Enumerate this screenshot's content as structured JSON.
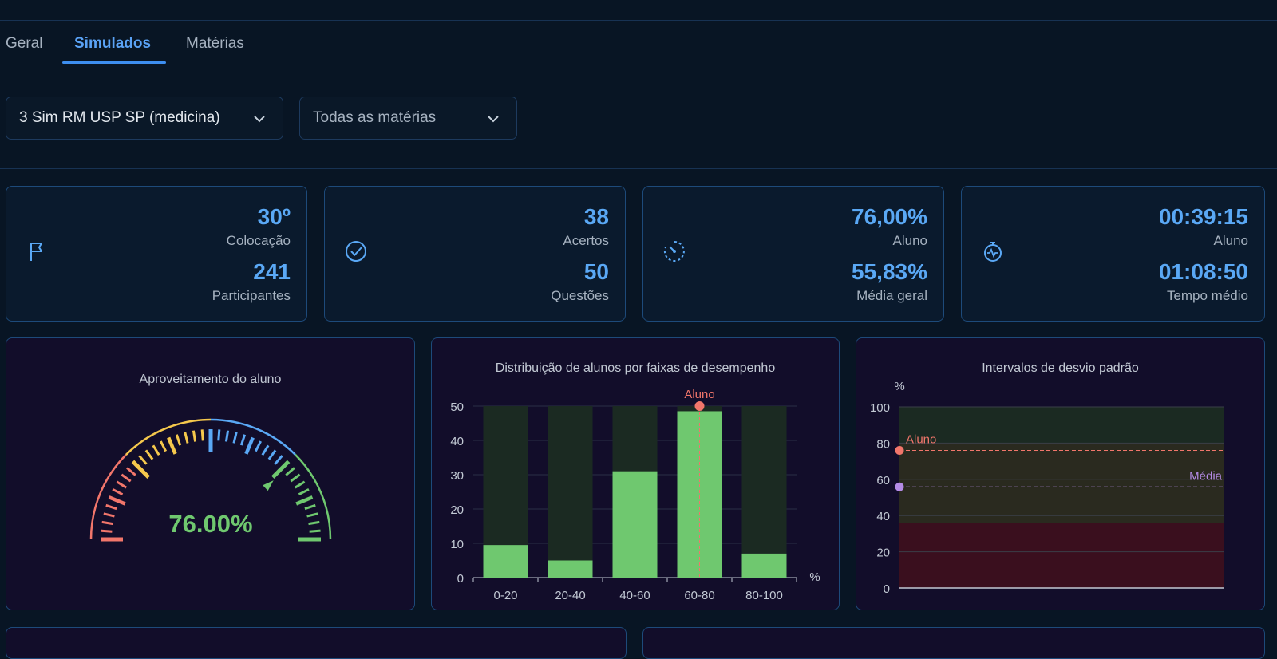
{
  "tabs": [
    {
      "label": "Geral",
      "active": false
    },
    {
      "label": "Simulados",
      "active": true
    },
    {
      "label": "Matérias",
      "active": false
    }
  ],
  "filters": {
    "exam": "3 Sim RM USP SP (medicina)",
    "subject": "Todas as matérias"
  },
  "stats": [
    {
      "icon": "flag-icon",
      "value1": "30º",
      "label1": "Colocação",
      "value2": "241",
      "label2": "Participantes"
    },
    {
      "icon": "check-circle-icon",
      "value1": "38",
      "label1": "Acertos",
      "value2": "50",
      "label2": "Questões"
    },
    {
      "icon": "gauge-timer-icon",
      "value1": "76,00%",
      "label1": "Aluno",
      "value2": "55,83%",
      "label2": "Média geral"
    },
    {
      "icon": "stopwatch-icon",
      "value1": "00:39:15",
      "label1": "Aluno",
      "value2": "01:08:50",
      "label2": "Tempo médio"
    }
  ],
  "colors": {
    "accent": "#5aa8f5",
    "good": "#6fc86f",
    "marker_student": "#f2766b",
    "marker_mean": "#b48be6",
    "gauge_red": "#f2766b",
    "gauge_yellow": "#f5c84c",
    "gauge_blue": "#5aa8f5",
    "gauge_green": "#6fc86f"
  },
  "gauge": {
    "title": "Aproveitamento do aluno",
    "value_text": "76.00%",
    "value": 76
  },
  "chart_data": [
    {
      "type": "bar",
      "title": "Distribuição de alunos por faixas de desempenho",
      "categories": [
        "0-20",
        "20-40",
        "40-60",
        "60-80",
        "80-100"
      ],
      "values": [
        9.5,
        5,
        31,
        48.5,
        7
      ],
      "background_max": 50,
      "ylim": [
        0,
        50
      ],
      "yticks": [
        0,
        10,
        20,
        30,
        40,
        50
      ],
      "xunit": "%",
      "marker": {
        "label": "Aluno",
        "category": "60-80",
        "value": 50
      }
    },
    {
      "type": "area",
      "title": "Intervalos de desvio padrão",
      "ylabel": "%",
      "ylim": [
        0,
        100
      ],
      "yticks": [
        0,
        20,
        40,
        60,
        80,
        100
      ],
      "bands": [
        {
          "from": 0,
          "to": 36,
          "color": "#3a0f1e"
        },
        {
          "from": 36,
          "to": 80,
          "color": "#2a2a1f"
        },
        {
          "from": 80,
          "to": 100,
          "color": "#1b2a22"
        }
      ],
      "lines": [
        {
          "label": "Aluno",
          "value": 76,
          "color": "#f2766b"
        },
        {
          "label": "Média",
          "value": 55.83,
          "color": "#b48be6"
        }
      ]
    }
  ]
}
